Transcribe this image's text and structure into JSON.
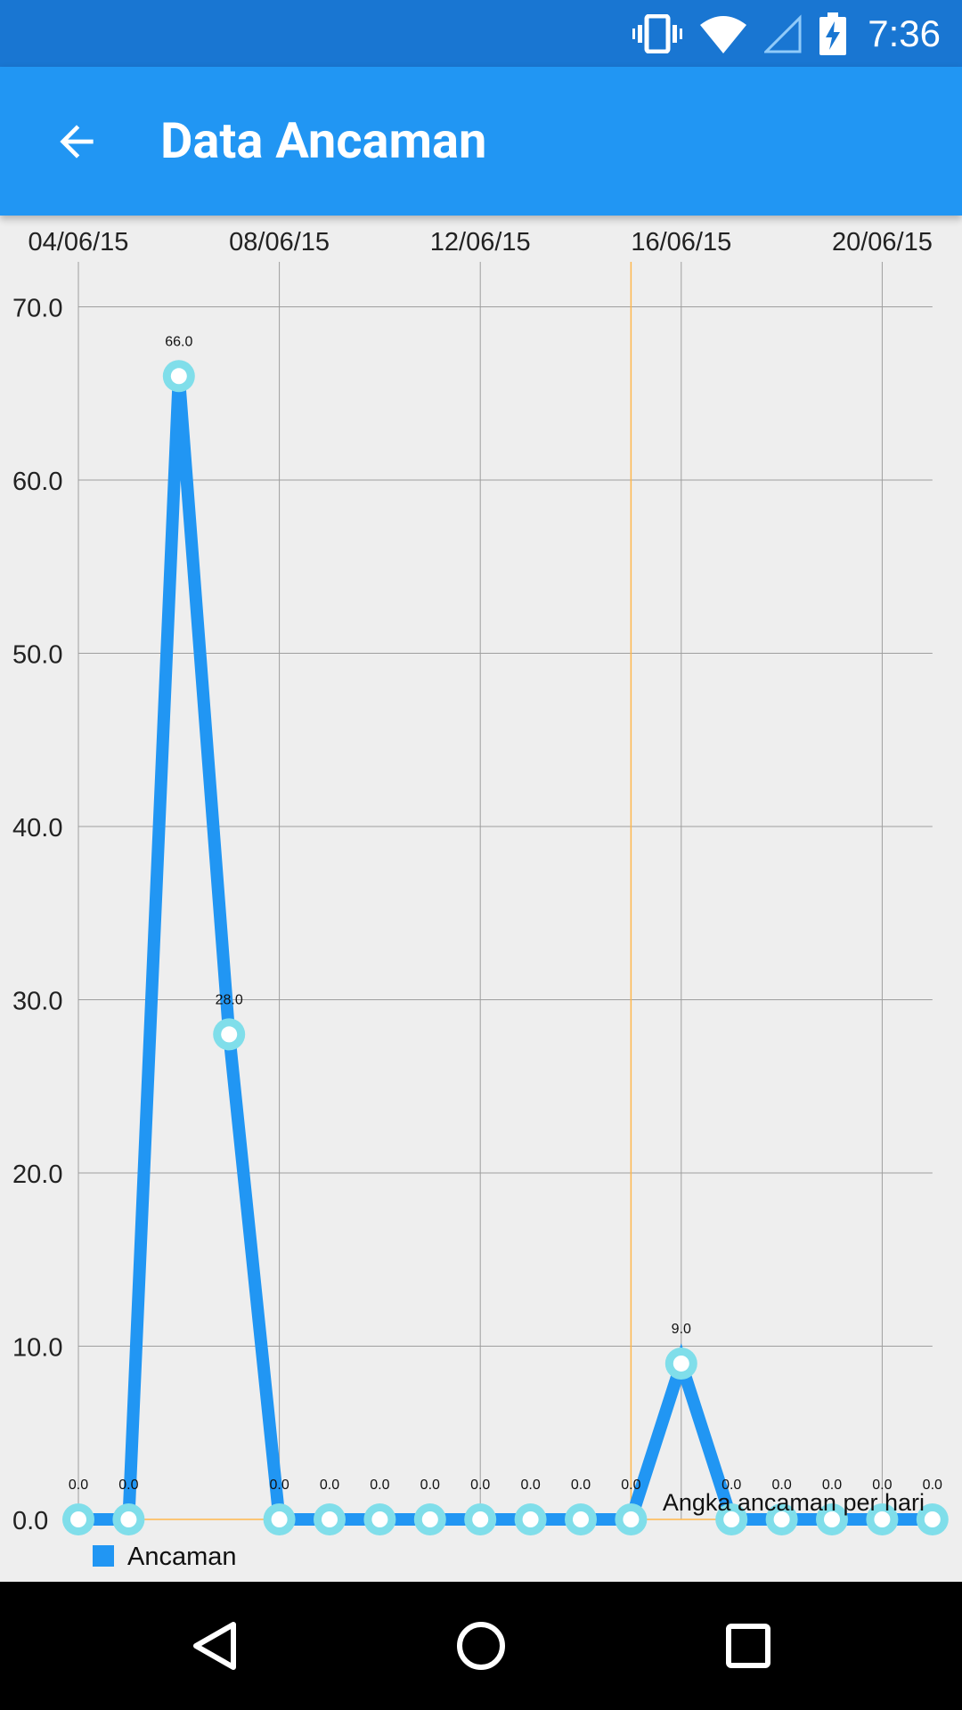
{
  "status_bar": {
    "time": "7:36",
    "icons": [
      "vibrate-icon",
      "wifi-icon",
      "signal-icon",
      "battery-charging-icon"
    ]
  },
  "app_bar": {
    "title": "Data Ancaman",
    "back_icon": "arrow-back-icon"
  },
  "chart_data": {
    "type": "line",
    "x_tick_labels": [
      "04/06/15",
      "08/06/15",
      "12/06/15",
      "16/06/15",
      "20/06/15"
    ],
    "y_tick_labels": [
      "0.0",
      "10.0",
      "20.0",
      "30.0",
      "40.0",
      "50.0",
      "60.0",
      "70.0"
    ],
    "ylim": [
      0,
      72.8
    ],
    "x": [
      "04/06/15",
      "05/06/15",
      "06/06/15",
      "07/06/15",
      "08/06/15",
      "09/06/15",
      "10/06/15",
      "11/06/15",
      "12/06/15",
      "13/06/15",
      "14/06/15",
      "15/06/15",
      "16/06/15",
      "17/06/15",
      "18/06/15",
      "19/06/15",
      "20/06/15",
      "21/06/15"
    ],
    "series": [
      {
        "name": "Ancaman",
        "values": [
          0,
          0,
          66,
          28,
          0,
          0,
          0,
          0,
          0,
          0,
          0,
          0,
          9,
          0,
          0,
          0,
          0,
          0
        ],
        "value_labels": [
          "0.0",
          "0.0",
          "66.0",
          "28.0",
          "0.0",
          "0.0",
          "0.0",
          "0.0",
          "0.0",
          "0.0",
          "0.0",
          "0.0",
          "9.0",
          "0.0",
          "0.0",
          "0.0",
          "0.0",
          "0.0"
        ]
      }
    ],
    "value_label_visible": [
      true,
      true,
      true,
      true,
      true,
      true,
      true,
      true,
      true,
      true,
      true,
      true,
      true,
      true,
      true,
      true,
      true,
      true
    ],
    "description": "Angka ancaman per hari",
    "grid": true,
    "legend": "bottom-left",
    "highlight_x": "15/06/15",
    "colors": {
      "line": "#2196F3",
      "point_ring": "#80DEEA",
      "point_fill": "#FFFFFF",
      "grid": "#9E9E9E",
      "highlight": "#FFB74D",
      "background": "#EEEEEE"
    }
  },
  "nav_bar": {
    "back": "nav-back-icon",
    "home": "nav-home-icon",
    "recents": "nav-recents-icon"
  }
}
